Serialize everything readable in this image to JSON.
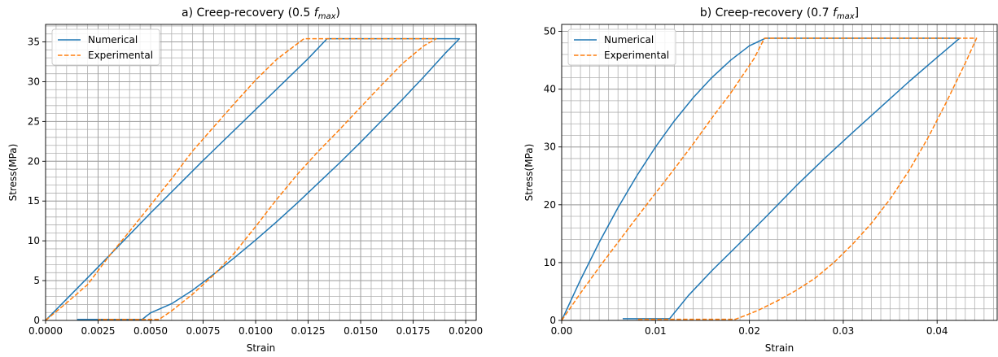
{
  "chart_data": [
    {
      "type": "line",
      "title_prefix": "a) Creep-recovery (0.5",
      "title_var": "f",
      "title_sub": "max",
      "title_suffix": ")",
      "xlabel": "Strain",
      "ylabel": "Stress(MPa)",
      "xlim": [
        0,
        0.0205
      ],
      "ylim": [
        0,
        37.2
      ],
      "xticks": [
        0,
        0.0025,
        0.005,
        0.0075,
        0.01,
        0.0125,
        0.015,
        0.0175,
        0.02
      ],
      "xtick_labels": [
        "0.0000",
        "0.0025",
        "0.0050",
        "0.0075",
        "0.0100",
        "0.0125",
        "0.0150",
        "0.0175",
        "0.0200"
      ],
      "yticks": [
        0,
        5,
        10,
        15,
        20,
        25,
        30,
        35
      ],
      "ytick_labels": [
        "0",
        "5",
        "10",
        "15",
        "20",
        "25",
        "30",
        "35"
      ],
      "minor_x_step": 0.0005,
      "minor_y_step": 1,
      "grid": true,
      "legend_position": "top-left",
      "series": [
        {
          "name": "Numerical",
          "color": "#1f77b4",
          "dash": "solid",
          "x": [
            0,
            0.0025,
            0.005,
            0.0075,
            0.01,
            0.0125,
            0.0134,
            0.0197,
            0.019,
            0.018,
            0.017,
            0.016,
            0.015,
            0.014,
            0.013,
            0.012,
            0.011,
            0.01,
            0.009,
            0.008,
            0.007,
            0.006,
            0.005,
            0.0048,
            0.0046,
            0.003,
            0.0015
          ],
          "y": [
            0,
            6.7,
            13.5,
            20.1,
            26.5,
            32.9,
            35.4,
            35.4,
            33.5,
            30.6,
            27.8,
            25.1,
            22.4,
            19.8,
            17.3,
            14.8,
            12.4,
            10.1,
            7.9,
            5.8,
            3.8,
            2.1,
            0.95,
            0.55,
            0.12,
            0.12,
            0.12
          ]
        },
        {
          "name": "Experimental",
          "color": "#ff7f0e",
          "dash": "dashed",
          "x": [
            0,
            0.001,
            0.002,
            0.003,
            0.004,
            0.005,
            0.006,
            0.007,
            0.008,
            0.009,
            0.01,
            0.011,
            0.0123,
            0.0186,
            0.018,
            0.017,
            0.016,
            0.015,
            0.014,
            0.013,
            0.012,
            0.011,
            0.01,
            0.009,
            0.008,
            0.007,
            0.006,
            0.0054,
            0.004,
            0.0025
          ],
          "y": [
            0,
            2.2,
            4.5,
            8.0,
            11.2,
            14.5,
            17.8,
            21.3,
            24.3,
            27.3,
            30.2,
            32.8,
            35.4,
            35.4,
            34.5,
            32.3,
            29.6,
            26.8,
            24.0,
            21.3,
            18.4,
            15.2,
            11.8,
            8.5,
            5.7,
            3.3,
            1.2,
            0.12,
            0.12,
            0.12
          ]
        }
      ]
    },
    {
      "type": "line",
      "title_prefix": "b) Creep-recovery (0.7",
      "title_var": "f",
      "title_sub": "max",
      "title_suffix": "]",
      "xlabel": "Strain",
      "ylabel": "Stress(MPa)",
      "xlim": [
        0,
        0.0464
      ],
      "ylim": [
        0,
        51.2
      ],
      "xticks": [
        0,
        0.01,
        0.02,
        0.03,
        0.04
      ],
      "xtick_labels": [
        "0.00",
        "0.01",
        "0.02",
        "0.03",
        "0.04"
      ],
      "yticks": [
        0,
        10,
        20,
        30,
        40,
        50
      ],
      "ytick_labels": [
        "0",
        "10",
        "20",
        "30",
        "40",
        "50"
      ],
      "minor_x_step": 0.001,
      "minor_y_step": 2,
      "grid": true,
      "legend_position": "top-left",
      "series": [
        {
          "name": "Numerical",
          "color": "#1f77b4",
          "dash": "solid",
          "x": [
            0,
            0.002,
            0.004,
            0.006,
            0.008,
            0.01,
            0.012,
            0.014,
            0.016,
            0.018,
            0.02,
            0.0217,
            0.0424,
            0.04,
            0.037,
            0.034,
            0.031,
            0.028,
            0.025,
            0.022,
            0.019,
            0.016,
            0.0135,
            0.0115,
            0.009,
            0.0065
          ],
          "y": [
            0,
            7.0,
            13.5,
            19.5,
            25.0,
            30.0,
            34.5,
            38.5,
            42.0,
            45.0,
            47.5,
            48.8,
            48.8,
            45.5,
            41.3,
            36.9,
            32.5,
            28.0,
            23.3,
            18.3,
            13.4,
            8.6,
            4.3,
            0.3,
            0.3,
            0.3
          ]
        },
        {
          "name": "Experimental",
          "color": "#ff7f0e",
          "dash": "dashed",
          "x": [
            0,
            0.002,
            0.004,
            0.006,
            0.008,
            0.01,
            0.012,
            0.014,
            0.016,
            0.018,
            0.0205,
            0.0216,
            0.0442,
            0.043,
            0.041,
            0.039,
            0.037,
            0.035,
            0.033,
            0.031,
            0.029,
            0.027,
            0.025,
            0.023,
            0.021,
            0.0195,
            0.0185,
            0.015,
            0.011,
            0.008
          ],
          "y": [
            0,
            4.7,
            9.2,
            13.5,
            17.8,
            22.0,
            26.2,
            30.5,
            35.0,
            39.3,
            45.3,
            48.8,
            48.8,
            44.5,
            37.8,
            31.5,
            25.9,
            21.0,
            16.8,
            13.2,
            10.0,
            7.3,
            5.2,
            3.4,
            1.8,
            0.8,
            0.2,
            0.2,
            0.2,
            0.2
          ]
        }
      ]
    }
  ]
}
